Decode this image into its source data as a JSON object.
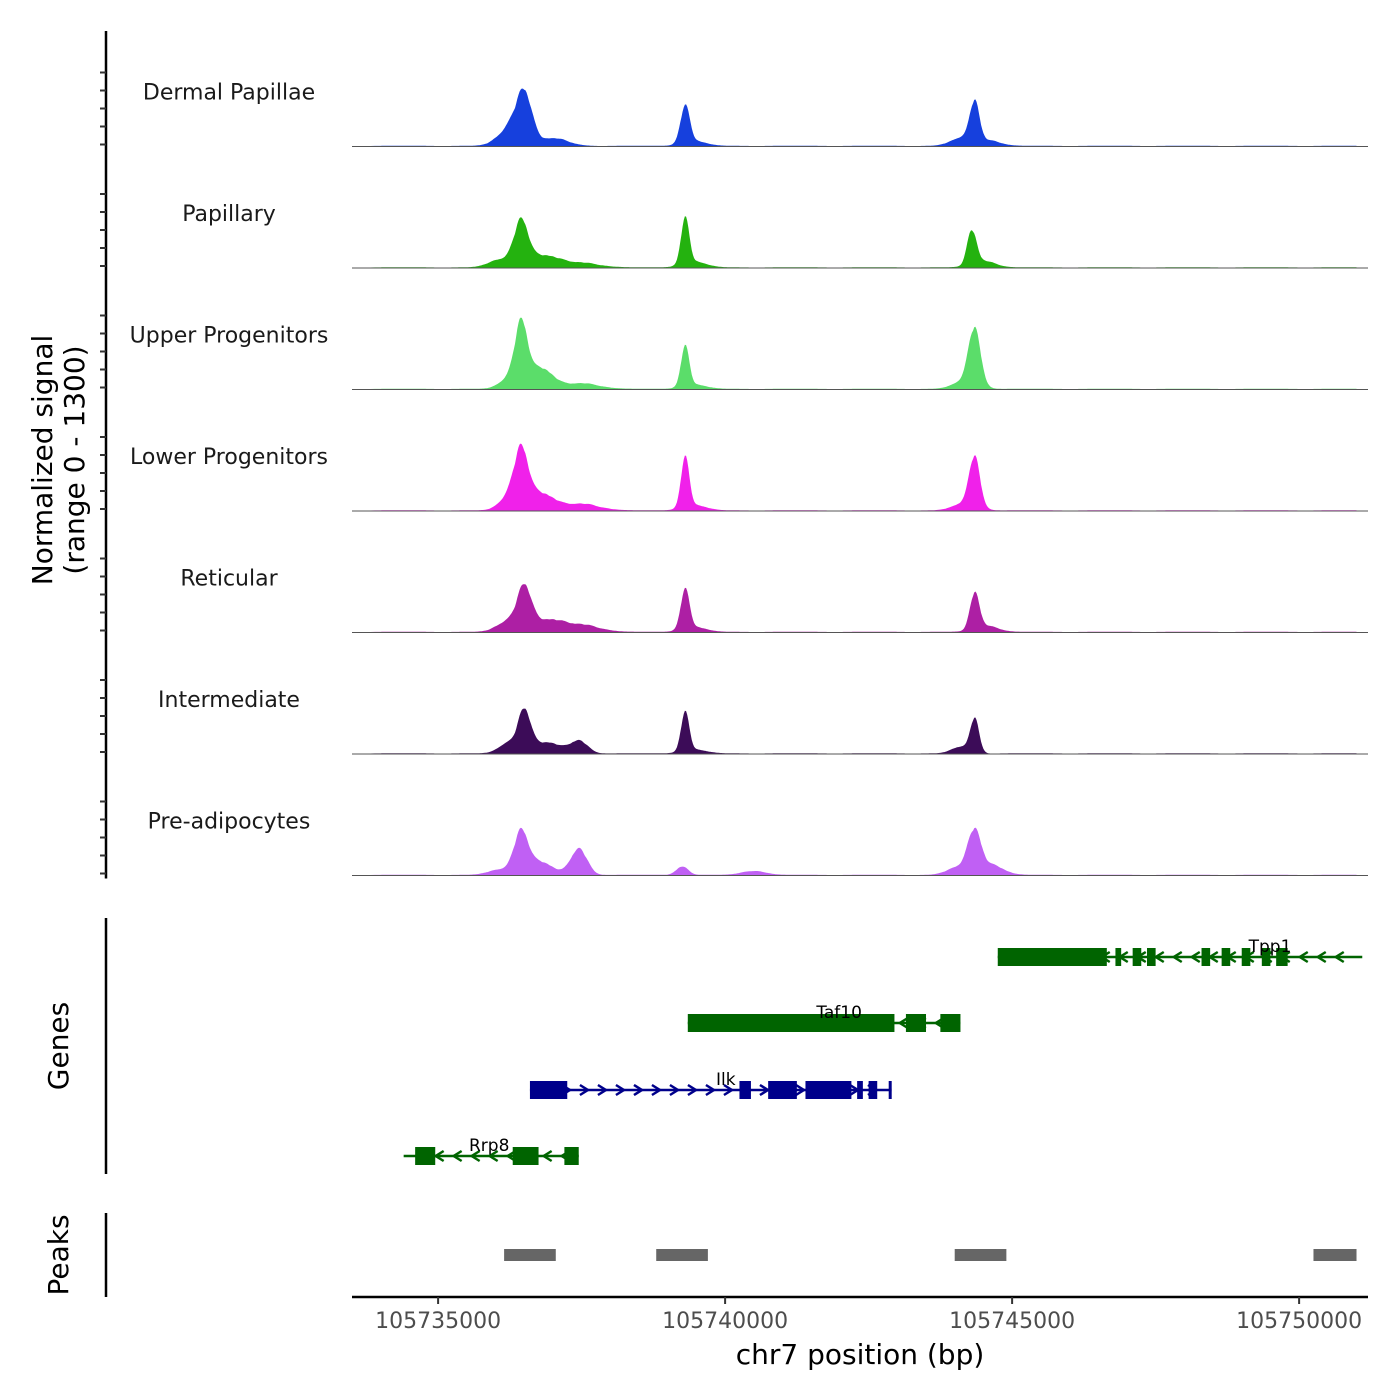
{
  "chart_data": {
    "type": "area",
    "title": "",
    "ylabel": "Normalized signal",
    "ylabel_range": "(range 0 - 1300)",
    "ylim": [
      0,
      1300
    ],
    "xlabel": "chr7 position (bp)",
    "xlim": [
      105733500,
      105751200
    ],
    "xticks": [
      105735000,
      105740000,
      105745000,
      105750000
    ],
    "xtick_labels": [
      "105735000",
      "105740000",
      "105745000",
      "105750000"
    ],
    "tracks": [
      {
        "name": "Dermal Papillae",
        "color": "#1640dd",
        "peaks": [
          [
            105736500,
            970,
            130
          ],
          [
            105736250,
            350,
            200
          ],
          [
            105737000,
            150,
            250
          ],
          [
            105739300,
            710,
            80
          ],
          [
            105739450,
            100,
            200
          ],
          [
            105744350,
            770,
            80
          ],
          [
            105744150,
            170,
            200
          ],
          [
            105744600,
            100,
            200
          ]
        ]
      },
      {
        "name": "Papillary",
        "color": "#24b20f",
        "peaks": [
          [
            105736450,
            890,
            120
          ],
          [
            105736100,
            160,
            200
          ],
          [
            105736850,
            230,
            250
          ],
          [
            105737500,
            90,
            300
          ],
          [
            105739300,
            880,
            70
          ],
          [
            105739450,
            120,
            200
          ],
          [
            105744300,
            660,
            80
          ],
          [
            105744500,
            130,
            200
          ]
        ]
      },
      {
        "name": "Upper Progenitors",
        "color": "#5bdd6a",
        "peaks": [
          [
            105736450,
            1280,
            110
          ],
          [
            105736200,
            180,
            150
          ],
          [
            105736800,
            400,
            200
          ],
          [
            105737500,
            110,
            300
          ],
          [
            105739300,
            770,
            70
          ],
          [
            105739450,
            90,
            200
          ],
          [
            105744350,
            1090,
            100
          ],
          [
            105744200,
            180,
            200
          ]
        ]
      },
      {
        "name": "Lower Progenitors",
        "color": "#f021ea",
        "peaks": [
          [
            105736450,
            1160,
            120
          ],
          [
            105736200,
            240,
            150
          ],
          [
            105736800,
            330,
            220
          ],
          [
            105737500,
            130,
            300
          ],
          [
            105739300,
            960,
            70
          ],
          [
            105739450,
            110,
            200
          ],
          [
            105744350,
            970,
            90
          ],
          [
            105744200,
            160,
            200
          ]
        ]
      },
      {
        "name": "Reticular",
        "color": "#ad1fa4",
        "peaks": [
          [
            105736500,
            860,
            120
          ],
          [
            105736200,
            200,
            180
          ],
          [
            105736900,
            230,
            250
          ],
          [
            105737500,
            140,
            300
          ],
          [
            105739300,
            760,
            75
          ],
          [
            105739450,
            100,
            200
          ],
          [
            105744350,
            720,
            80
          ],
          [
            105744550,
            120,
            200
          ]
        ]
      },
      {
        "name": "Intermediate",
        "color": "#3c0c58",
        "peaks": [
          [
            105736500,
            850,
            110
          ],
          [
            105736200,
            190,
            150
          ],
          [
            105736900,
            220,
            220
          ],
          [
            105737450,
            250,
            150
          ],
          [
            105739300,
            750,
            70
          ],
          [
            105739450,
            80,
            200
          ],
          [
            105744350,
            680,
            75
          ],
          [
            105744100,
            130,
            150
          ]
        ]
      },
      {
        "name": "Pre-adipocytes",
        "color": "#c060f4",
        "peaks": [
          [
            105736450,
            850,
            120
          ],
          [
            105736100,
            110,
            200
          ],
          [
            105736800,
            250,
            200
          ],
          [
            105737450,
            520,
            140
          ],
          [
            105739250,
            170,
            100
          ],
          [
            105740500,
            80,
            200
          ],
          [
            105744350,
            790,
            110
          ],
          [
            105744100,
            170,
            200
          ],
          [
            105744650,
            190,
            200
          ]
        ]
      }
    ],
    "genes_panel_label": "Genes",
    "genes": [
      {
        "name": "Tpp1",
        "strand": "-",
        "color": "#006400",
        "start": 105744750,
        "end": 105751100,
        "exons": [
          [
            105744750,
            105746650
          ],
          [
            105746800,
            105746900
          ],
          [
            105747100,
            105747250
          ],
          [
            105747350,
            105747500
          ],
          [
            105748300,
            105748450
          ],
          [
            105748650,
            105748800
          ],
          [
            105749000,
            105749150
          ],
          [
            105749350,
            105749500
          ],
          [
            105749600,
            105749800
          ]
        ]
      },
      {
        "name": "Taf10",
        "strand": "-",
        "color": "#006400",
        "start": 105739350,
        "end": 105744100,
        "exons": [
          [
            105739350,
            105742950
          ],
          [
            105743150,
            105743500
          ],
          [
            105743750,
            105744100
          ]
        ]
      },
      {
        "name": "Ilk",
        "strand": "+",
        "color": "#00008b",
        "start": 105736600,
        "end": 105742900,
        "exons": [
          [
            105736600,
            105737250
          ],
          [
            105740250,
            105740450
          ],
          [
            105740750,
            105741250
          ],
          [
            105741400,
            105742200
          ],
          [
            105742300,
            105742400
          ],
          [
            105742500,
            105742650
          ],
          [
            105742850,
            105742900
          ]
        ]
      },
      {
        "name": "Rrp8",
        "strand": "-",
        "color": "#006400",
        "start": 105734400,
        "end": 105737450,
        "exons": [
          [
            105734600,
            105734950
          ],
          [
            105736300,
            105736750
          ],
          [
            105737200,
            105737450
          ]
        ]
      }
    ],
    "peaks_panel_label": "Peaks",
    "peak_regions": [
      [
        105736150,
        105737050
      ],
      [
        105738800,
        105739700
      ],
      [
        105744000,
        105744900
      ],
      [
        105750250,
        105751000
      ]
    ]
  }
}
